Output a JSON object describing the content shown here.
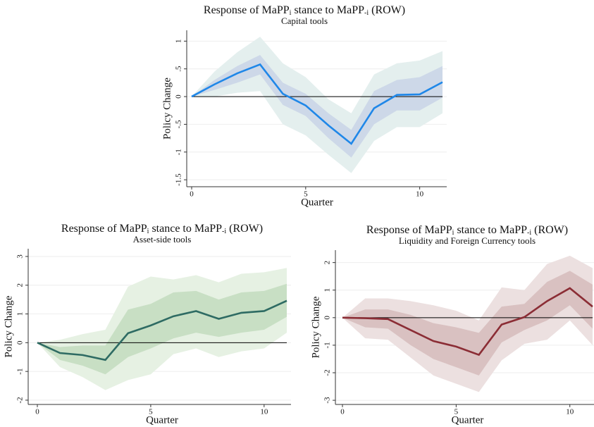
{
  "chart_data": [
    {
      "type": "line",
      "title": [
        "Response of MaPP",
        "i",
        " stance to MaPP",
        "-i",
        " (ROW)"
      ],
      "subtitle": "Capital tools",
      "x_label": "Quarter",
      "y_label": "Policy Change",
      "x": [
        0,
        1,
        2,
        3,
        4,
        5,
        6,
        7,
        8,
        9,
        10,
        11
      ],
      "values": [
        0,
        0.22,
        0.42,
        0.58,
        0.05,
        -0.16,
        -0.52,
        -0.85,
        -0.21,
        0.03,
        0.04,
        0.26
      ],
      "color": "#1f87e8",
      "bands": [
        {
          "lower": [
            0,
            0,
            0.07,
            0.1,
            -0.5,
            -0.7,
            -1.05,
            -1.38,
            -0.8,
            -0.55,
            -0.55,
            -0.3
          ],
          "upper": [
            0,
            0.45,
            0.8,
            1.08,
            0.6,
            0.35,
            -0.05,
            -0.3,
            0.4,
            0.6,
            0.65,
            0.82
          ],
          "color": "#e4efee"
        },
        {
          "lower": [
            0,
            0.12,
            0.25,
            0.4,
            -0.15,
            -0.35,
            -0.75,
            -1.1,
            -0.5,
            -0.25,
            -0.25,
            -0.02
          ],
          "upper": [
            0,
            0.3,
            0.55,
            0.75,
            0.25,
            0.05,
            -0.3,
            -0.6,
            0.1,
            0.3,
            0.35,
            0.55
          ],
          "color": "#cdd8e8"
        }
      ],
      "xlim": [
        0,
        11
      ],
      "xticks": [
        0,
        5,
        10
      ],
      "ylim": [
        -1.6,
        1.17
      ],
      "yticks": [
        {
          "value": -1.5,
          "label": "-1.5"
        },
        -1,
        {
          "value": -0.5,
          "label": "-.5"
        },
        0,
        {
          "value": 0.5,
          "label": ".5"
        },
        1
      ],
      "grid": true
    },
    {
      "type": "line",
      "title": [
        "Response of MaPP",
        "i",
        " stance to MaPP",
        "-i",
        " (ROW)"
      ],
      "subtitle": "Asset-side tools",
      "x_label": "Quarter",
      "y_label": "Policy Change",
      "x": [
        0,
        1,
        2,
        3,
        4,
        5,
        6,
        7,
        8,
        9,
        10,
        11
      ],
      "values": [
        0,
        -0.36,
        -0.43,
        -0.6,
        0.33,
        0.6,
        0.92,
        1.1,
        0.83,
        1.04,
        1.1,
        1.46
      ],
      "color": "#2e6b63",
      "bands": [
        {
          "lower": [
            0,
            -0.85,
            -1.2,
            -1.65,
            -1.3,
            -1.1,
            -0.4,
            -0.2,
            -0.5,
            -0.3,
            -0.2,
            0.35
          ],
          "upper": [
            0,
            0.1,
            0.3,
            0.45,
            1.95,
            2.3,
            2.2,
            2.35,
            2.1,
            2.4,
            2.45,
            2.6
          ],
          "color": "#e6f1e3"
        },
        {
          "lower": [
            0,
            -0.6,
            -0.8,
            -1.1,
            -0.5,
            -0.2,
            0.15,
            0.35,
            0.2,
            0.35,
            0.45,
            0.9
          ],
          "upper": [
            0,
            -0.15,
            -0.1,
            -0.1,
            1.15,
            1.35,
            1.75,
            1.8,
            1.5,
            1.75,
            1.8,
            2.05
          ],
          "color": "#c8dfc4"
        }
      ],
      "xlim": [
        0,
        11
      ],
      "xticks": [
        0,
        5,
        10
      ],
      "ylim": [
        -2.1,
        3.22
      ],
      "yticks": [
        -2,
        -1,
        0,
        1,
        2,
        3
      ],
      "grid": true
    },
    {
      "type": "line",
      "title": [
        "Response of MaPP",
        "i",
        " stance to MaPP",
        "-i",
        " (ROW)"
      ],
      "subtitle": "Liquidity and Foreign Currency tools",
      "x_label": "Quarter",
      "y_label": "Policy Change",
      "x": [
        0,
        1,
        2,
        3,
        4,
        5,
        6,
        7,
        8,
        9,
        10,
        11
      ],
      "values": [
        0,
        -0.02,
        -0.05,
        -0.45,
        -0.85,
        -1.05,
        -1.35,
        -0.25,
        0.02,
        0.6,
        1.07,
        0.4
      ],
      "color": "#8b2d35",
      "bands": [
        {
          "lower": [
            0,
            -0.75,
            -0.8,
            -1.45,
            -2.1,
            -2.4,
            -2.7,
            -1.55,
            -0.95,
            -0.8,
            -0.1,
            -1.0
          ],
          "upper": [
            0,
            0.7,
            0.7,
            0.6,
            0.45,
            0.25,
            -0.1,
            1.1,
            1.0,
            1.95,
            2.25,
            1.8
          ],
          "color": "#ece0e0"
        },
        {
          "lower": [
            0,
            -0.35,
            -0.4,
            -1.0,
            -1.5,
            -1.8,
            -2.1,
            -0.9,
            -0.45,
            -0.1,
            0.45,
            -0.4
          ],
          "upper": [
            0,
            0.3,
            0.3,
            0.1,
            -0.2,
            -0.35,
            -0.55,
            0.4,
            0.5,
            1.3,
            1.7,
            1.2
          ],
          "color": "#d9c1c1"
        }
      ],
      "xlim": [
        0,
        11
      ],
      "xticks": [
        0,
        5,
        10
      ],
      "ylim": [
        -3.1,
        2.4
      ],
      "yticks": [
        -3,
        -2,
        -1,
        0,
        1,
        2
      ],
      "grid": true
    }
  ]
}
